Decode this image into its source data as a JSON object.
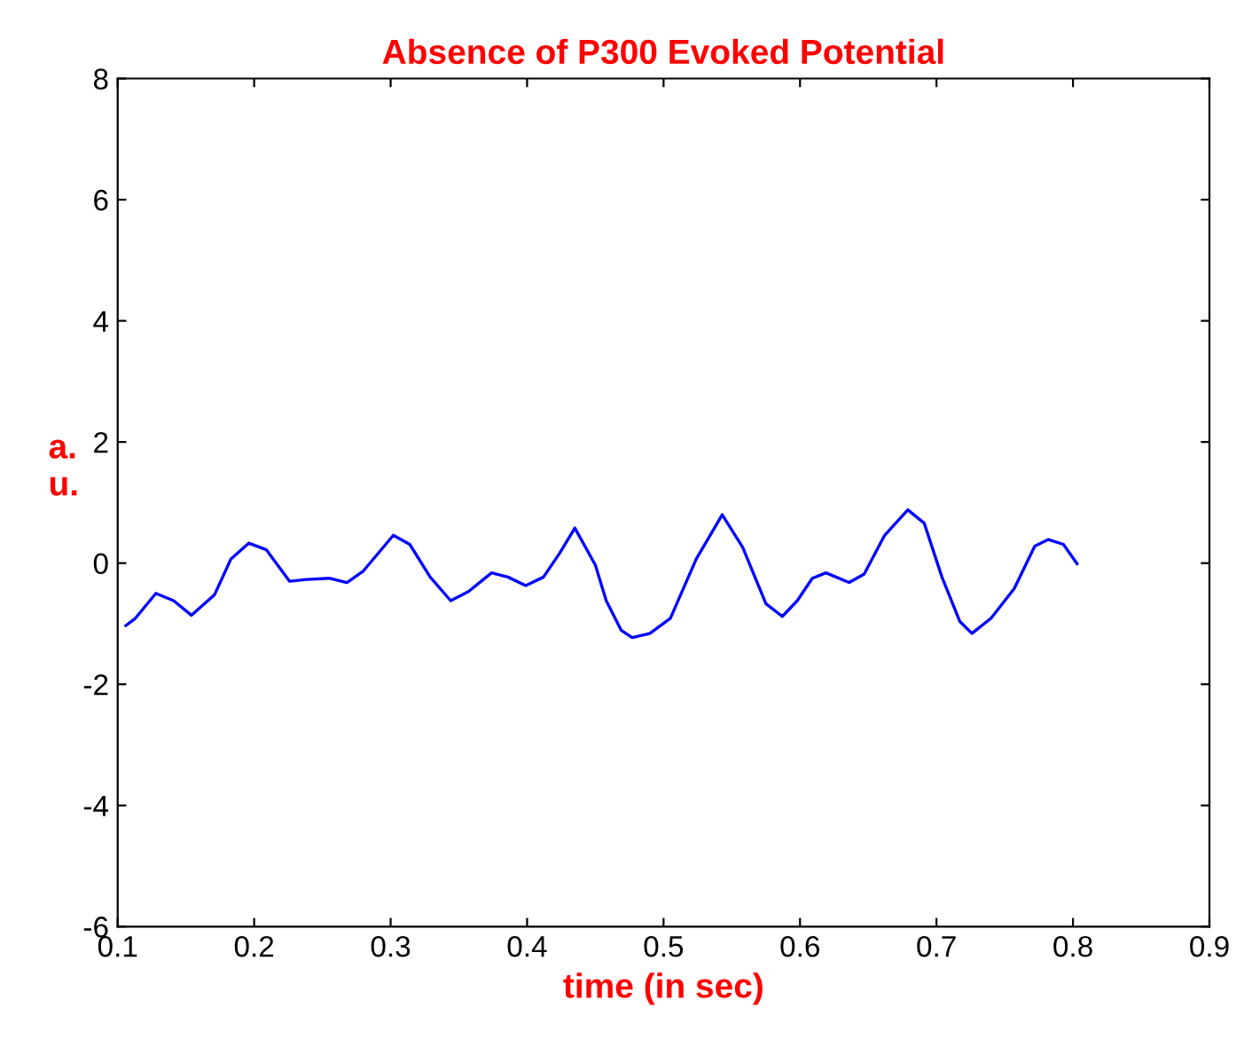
{
  "chart_data": {
    "type": "line",
    "title": "Absence of P300 Evoked Potential",
    "xlabel": "time (in sec)",
    "ylabel": "a.\nu.",
    "xlim": [
      0.1,
      0.9
    ],
    "ylim": [
      -6,
      8
    ],
    "xticks": [
      0.1,
      0.2,
      0.3,
      0.4,
      0.5,
      0.6,
      0.7,
      0.8,
      0.9
    ],
    "yticks": [
      -6,
      -4,
      -2,
      0,
      2,
      4,
      6,
      8
    ],
    "grid": false,
    "marker": "none",
    "line_style": "solid",
    "series": [
      {
        "color": "#0000ff",
        "x": [
          0.106,
          0.113,
          0.128,
          0.141,
          0.154,
          0.171,
          0.183,
          0.196,
          0.209,
          0.226,
          0.238,
          0.255,
          0.268,
          0.28,
          0.302,
          0.314,
          0.329,
          0.344,
          0.357,
          0.374,
          0.386,
          0.399,
          0.412,
          0.424,
          0.435,
          0.45,
          0.458,
          0.469,
          0.477,
          0.49,
          0.505,
          0.524,
          0.543,
          0.558,
          0.575,
          0.587,
          0.598,
          0.609,
          0.619,
          0.636,
          0.647,
          0.662,
          0.679,
          0.691,
          0.704,
          0.717,
          0.726,
          0.74,
          0.757,
          0.772,
          0.782,
          0.793,
          0.803
        ],
        "values": [
          -1.03,
          -0.91,
          -0.5,
          -0.62,
          -0.86,
          -0.52,
          0.07,
          0.33,
          0.22,
          -0.3,
          -0.27,
          -0.25,
          -0.32,
          -0.13,
          0.46,
          0.31,
          -0.23,
          -0.62,
          -0.47,
          -0.16,
          -0.23,
          -0.37,
          -0.23,
          0.17,
          0.58,
          -0.03,
          -0.62,
          -1.11,
          -1.23,
          -1.16,
          -0.91,
          0.07,
          0.8,
          0.26,
          -0.67,
          -0.88,
          -0.62,
          -0.25,
          -0.16,
          -0.32,
          -0.18,
          0.46,
          0.88,
          0.66,
          -0.23,
          -0.96,
          -1.16,
          -0.91,
          -0.42,
          0.28,
          0.39,
          0.31,
          -0.01
        ]
      }
    ]
  }
}
